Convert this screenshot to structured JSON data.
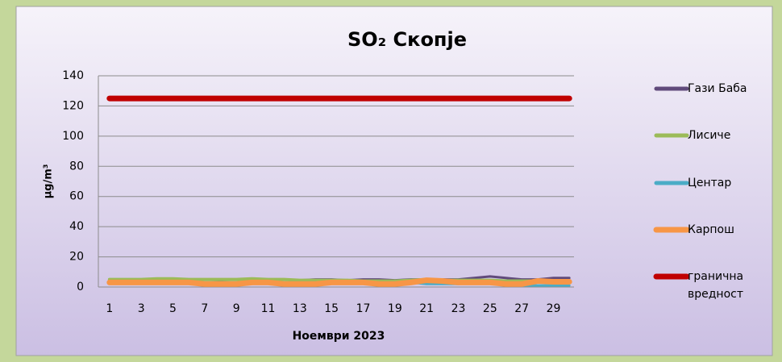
{
  "chart_data": {
    "type": "line",
    "title": "SO₂ Скопје",
    "x_label": "Ноември 2023",
    "y_label": "μg/m³",
    "categories": [
      1,
      null,
      3,
      null,
      5,
      null,
      7,
      null,
      9,
      null,
      11,
      null,
      13,
      null,
      15,
      null,
      17,
      null,
      19,
      null,
      21,
      null,
      23,
      null,
      25,
      null,
      27,
      null,
      29,
      null
    ],
    "ylim": [
      0,
      140
    ],
    "yticks": [
      0,
      20,
      40,
      60,
      80,
      100,
      120,
      140
    ],
    "grid": true,
    "legend": "right",
    "series": [
      {
        "name": "Гази Баба",
        "color": "#604a7b",
        "line_width": 3,
        "values": [
          5,
          5,
          5,
          5,
          5,
          5,
          5,
          4.5,
          5,
          5,
          5,
          5,
          4.5,
          5,
          5,
          4.5,
          5,
          5,
          4.5,
          5,
          5,
          5,
          5,
          6,
          7,
          6,
          5,
          5,
          6,
          6
        ]
      },
      {
        "name": "Лисиче",
        "color": "#9bbb59",
        "line_width": 4,
        "values": [
          5,
          5,
          5,
          5.5,
          5.5,
          5,
          5,
          5,
          5,
          5.5,
          5,
          5,
          4.5,
          4.5,
          4.5,
          4.5,
          4,
          4,
          4,
          4.5,
          5,
          4.5,
          4.5,
          4.5,
          4.5,
          4,
          4,
          4,
          4,
          4
        ]
      },
      {
        "name": "Центар",
        "color": "#4bacc6",
        "line_width": 3,
        "values": [
          3,
          3,
          3,
          3,
          3,
          3,
          3,
          3,
          3,
          3,
          3,
          3,
          3,
          3,
          3,
          3,
          3,
          3,
          3,
          3,
          2,
          2,
          2,
          3,
          3,
          2,
          1,
          1,
          1,
          1
        ]
      },
      {
        "name": "Карпош",
        "color": "#f79646",
        "line_width": 7,
        "values": [
          3,
          3,
          3,
          3,
          3,
          3,
          2,
          2,
          2,
          3,
          3,
          2,
          2,
          2,
          3,
          3,
          3,
          2,
          2,
          3,
          4.5,
          4,
          3,
          3,
          3,
          2,
          2,
          4,
          3.5,
          3.5
        ]
      },
      {
        "name": "гранична вредност",
        "color": "#c00000",
        "line_width": 7,
        "values": [
          125,
          125,
          125,
          125,
          125,
          125,
          125,
          125,
          125,
          125,
          125,
          125,
          125,
          125,
          125,
          125,
          125,
          125,
          125,
          125,
          125,
          125,
          125,
          125,
          125,
          125,
          125,
          125,
          125,
          125
        ]
      }
    ]
  }
}
